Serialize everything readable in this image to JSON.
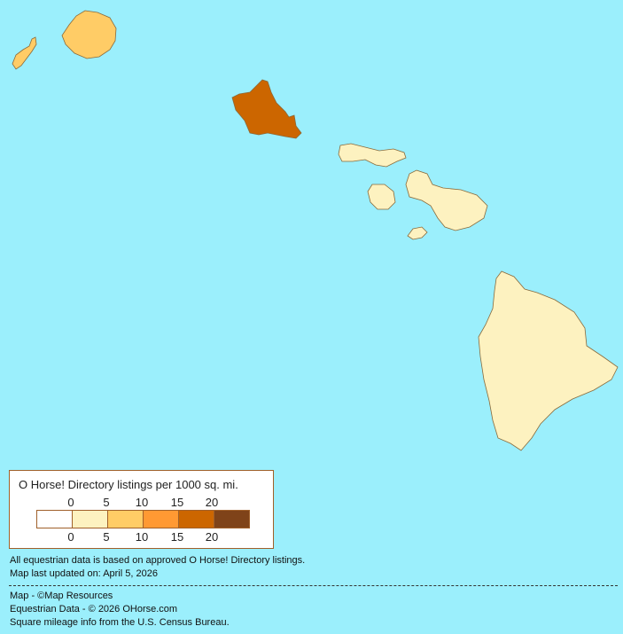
{
  "map": {
    "background_color": "#9BEFFC",
    "regions": [
      {
        "id": "niihau",
        "level": 2,
        "color": "#FFCC66"
      },
      {
        "id": "kauai",
        "level": 2,
        "color": "#FFCC66"
      },
      {
        "id": "oahu",
        "level": 4,
        "color": "#CC6600"
      },
      {
        "id": "molokai",
        "level": 1,
        "color": "#FDF2C0"
      },
      {
        "id": "lanai",
        "level": 1,
        "color": "#FDF2C0"
      },
      {
        "id": "maui",
        "level": 1,
        "color": "#FDF2C0"
      },
      {
        "id": "kahoolawe",
        "level": 1,
        "color": "#FDF2C0"
      },
      {
        "id": "hawaii",
        "level": 1,
        "color": "#FDF2C0"
      }
    ]
  },
  "legend": {
    "title": "O Horse! Directory listings per 1000 sq. mi.",
    "top_ticks": [
      "0",
      "5",
      "10",
      "15",
      "20"
    ],
    "bottom_ticks": [
      "0",
      "5",
      "10",
      "15",
      "20"
    ],
    "colors": [
      "#FFFFFF",
      "#FDF2C0",
      "#FFCC66",
      "#FF9933",
      "#CC6600",
      "#7F4319"
    ]
  },
  "notes": {
    "line1": "All equestrian data is based on approved O Horse! Directory listings.",
    "line2": "Map last updated on: April 5, 2026",
    "credit_map": "Map - ©Map Resources",
    "credit_data": "Equestrian Data - © 2026 OHorse.com",
    "credit_census": "Square mileage info from the U.S. Census Bureau."
  }
}
